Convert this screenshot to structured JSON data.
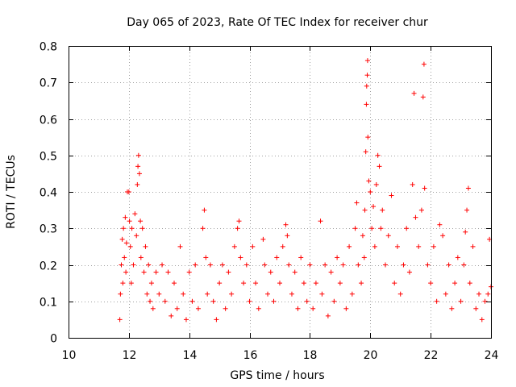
{
  "chart_data": {
    "type": "scatter",
    "title": "Day 065 of 2023, Rate Of TEC Index for receiver chur",
    "xlabel": "GPS time / hours",
    "ylabel": "ROTI / TECUs",
    "xlim": [
      10,
      24
    ],
    "ylim": [
      0,
      0.8
    ],
    "xticks": [
      "10",
      "12",
      "14",
      "16",
      "18",
      "20",
      "22",
      "24"
    ],
    "yticks": [
      "0",
      "0.1",
      "0.2",
      "0.3",
      "0.4",
      "0.5",
      "0.6",
      "0.7",
      "0.8"
    ],
    "grid": true,
    "marker": "+",
    "color": "#ff0000",
    "series": [
      {
        "points": [
          [
            11.7,
            0.05
          ],
          [
            11.72,
            0.12
          ],
          [
            11.75,
            0.2
          ],
          [
            11.78,
            0.27
          ],
          [
            11.8,
            0.15
          ],
          [
            11.82,
            0.3
          ],
          [
            11.85,
            0.22
          ],
          [
            11.88,
            0.33
          ],
          [
            11.9,
            0.18
          ],
          [
            11.92,
            0.26
          ],
          [
            11.95,
            0.4
          ],
          [
            12.0,
            0.4
          ],
          [
            12.02,
            0.32
          ],
          [
            12.05,
            0.25
          ],
          [
            12.08,
            0.15
          ],
          [
            12.1,
            0.3
          ],
          [
            12.15,
            0.2
          ],
          [
            12.2,
            0.34
          ],
          [
            12.25,
            0.28
          ],
          [
            12.28,
            0.42
          ],
          [
            12.3,
            0.47
          ],
          [
            12.32,
            0.5
          ],
          [
            12.35,
            0.45
          ],
          [
            12.38,
            0.32
          ],
          [
            12.4,
            0.22
          ],
          [
            12.45,
            0.3
          ],
          [
            12.5,
            0.18
          ],
          [
            12.55,
            0.25
          ],
          [
            12.6,
            0.12
          ],
          [
            12.65,
            0.2
          ],
          [
            12.7,
            0.1
          ],
          [
            12.75,
            0.15
          ],
          [
            12.8,
            0.08
          ],
          [
            12.9,
            0.18
          ],
          [
            13.0,
            0.12
          ],
          [
            13.1,
            0.2
          ],
          [
            13.2,
            0.1
          ],
          [
            13.3,
            0.18
          ],
          [
            13.4,
            0.06
          ],
          [
            13.5,
            0.15
          ],
          [
            13.6,
            0.08
          ],
          [
            13.7,
            0.25
          ],
          [
            13.8,
            0.12
          ],
          [
            13.9,
            0.05
          ],
          [
            14.0,
            0.18
          ],
          [
            14.1,
            0.1
          ],
          [
            14.2,
            0.2
          ],
          [
            14.3,
            0.08
          ],
          [
            14.45,
            0.3
          ],
          [
            14.5,
            0.35
          ],
          [
            14.55,
            0.22
          ],
          [
            14.6,
            0.12
          ],
          [
            14.7,
            0.2
          ],
          [
            14.8,
            0.1
          ],
          [
            14.9,
            0.05
          ],
          [
            15.0,
            0.15
          ],
          [
            15.1,
            0.2
          ],
          [
            15.2,
            0.08
          ],
          [
            15.3,
            0.18
          ],
          [
            15.4,
            0.12
          ],
          [
            15.5,
            0.25
          ],
          [
            15.6,
            0.3
          ],
          [
            15.65,
            0.32
          ],
          [
            15.7,
            0.22
          ],
          [
            15.8,
            0.15
          ],
          [
            15.9,
            0.2
          ],
          [
            16.0,
            0.1
          ],
          [
            16.1,
            0.25
          ],
          [
            16.2,
            0.15
          ],
          [
            16.3,
            0.08
          ],
          [
            16.45,
            0.27
          ],
          [
            16.5,
            0.2
          ],
          [
            16.6,
            0.12
          ],
          [
            16.7,
            0.18
          ],
          [
            16.8,
            0.1
          ],
          [
            16.9,
            0.22
          ],
          [
            17.0,
            0.15
          ],
          [
            17.1,
            0.25
          ],
          [
            17.2,
            0.31
          ],
          [
            17.25,
            0.28
          ],
          [
            17.3,
            0.2
          ],
          [
            17.4,
            0.12
          ],
          [
            17.5,
            0.18
          ],
          [
            17.6,
            0.08
          ],
          [
            17.7,
            0.22
          ],
          [
            17.8,
            0.15
          ],
          [
            17.9,
            0.1
          ],
          [
            18.0,
            0.2
          ],
          [
            18.1,
            0.08
          ],
          [
            18.2,
            0.15
          ],
          [
            18.35,
            0.32
          ],
          [
            18.4,
            0.12
          ],
          [
            18.5,
            0.2
          ],
          [
            18.6,
            0.06
          ],
          [
            18.7,
            0.18
          ],
          [
            18.8,
            0.1
          ],
          [
            18.9,
            0.22
          ],
          [
            19.0,
            0.15
          ],
          [
            19.1,
            0.2
          ],
          [
            19.2,
            0.08
          ],
          [
            19.3,
            0.25
          ],
          [
            19.4,
            0.12
          ],
          [
            19.5,
            0.3
          ],
          [
            19.55,
            0.37
          ],
          [
            19.6,
            0.2
          ],
          [
            19.7,
            0.15
          ],
          [
            19.75,
            0.28
          ],
          [
            19.8,
            0.22
          ],
          [
            19.82,
            0.35
          ],
          [
            19.85,
            0.51
          ],
          [
            19.87,
            0.64
          ],
          [
            19.88,
            0.69
          ],
          [
            19.9,
            0.72
          ],
          [
            19.91,
            0.76
          ],
          [
            19.92,
            0.55
          ],
          [
            19.95,
            0.43
          ],
          [
            20.0,
            0.4
          ],
          [
            20.05,
            0.3
          ],
          [
            20.1,
            0.36
          ],
          [
            20.15,
            0.25
          ],
          [
            20.2,
            0.42
          ],
          [
            20.25,
            0.5
          ],
          [
            20.3,
            0.47
          ],
          [
            20.35,
            0.3
          ],
          [
            20.4,
            0.35
          ],
          [
            20.5,
            0.2
          ],
          [
            20.6,
            0.28
          ],
          [
            20.7,
            0.39
          ],
          [
            20.8,
            0.15
          ],
          [
            20.9,
            0.25
          ],
          [
            21.0,
            0.12
          ],
          [
            21.1,
            0.2
          ],
          [
            21.2,
            0.3
          ],
          [
            21.3,
            0.18
          ],
          [
            21.4,
            0.42
          ],
          [
            21.45,
            0.67
          ],
          [
            21.5,
            0.33
          ],
          [
            21.6,
            0.25
          ],
          [
            21.7,
            0.35
          ],
          [
            21.75,
            0.66
          ],
          [
            21.78,
            0.75
          ],
          [
            21.8,
            0.41
          ],
          [
            21.9,
            0.2
          ],
          [
            22.0,
            0.15
          ],
          [
            22.1,
            0.25
          ],
          [
            22.2,
            0.1
          ],
          [
            22.3,
            0.31
          ],
          [
            22.4,
            0.28
          ],
          [
            22.5,
            0.12
          ],
          [
            22.6,
            0.2
          ],
          [
            22.7,
            0.08
          ],
          [
            22.8,
            0.15
          ],
          [
            22.9,
            0.22
          ],
          [
            23.0,
            0.1
          ],
          [
            23.1,
            0.2
          ],
          [
            23.15,
            0.29
          ],
          [
            23.2,
            0.35
          ],
          [
            23.25,
            0.41
          ],
          [
            23.3,
            0.15
          ],
          [
            23.4,
            0.25
          ],
          [
            23.5,
            0.08
          ],
          [
            23.6,
            0.12
          ],
          [
            23.7,
            0.05
          ],
          [
            23.8,
            0.1
          ],
          [
            23.9,
            0.12
          ],
          [
            23.95,
            0.27
          ],
          [
            24.0,
            0.14
          ]
        ]
      }
    ]
  }
}
